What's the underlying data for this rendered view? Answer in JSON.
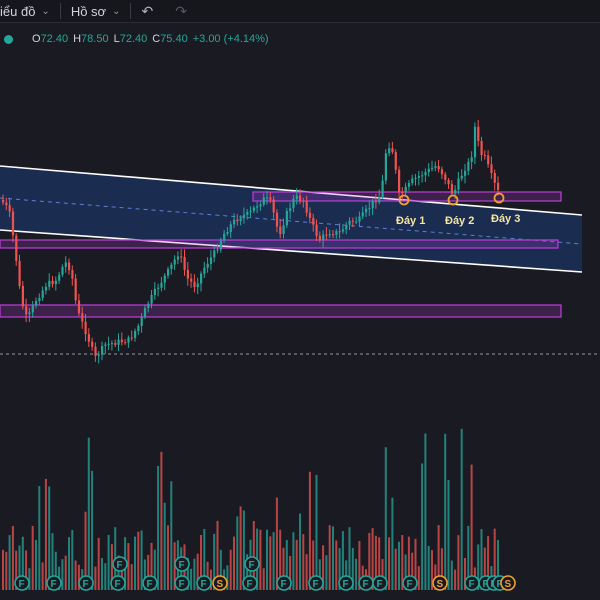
{
  "toolbar": {
    "chart_menu": "iểu đồ",
    "profile_menu": "Hồ sơ",
    "undo_icon": "undo-icon",
    "redo_icon": "redo-icon"
  },
  "legend": {
    "open_label": "O",
    "open": "72.40",
    "high_label": "H",
    "high": "78.50",
    "low_label": "L",
    "low": "72.40",
    "close_label": "C",
    "close": "75.40",
    "change": "+3.00 (+4.14%)",
    "status_color": "#26a69a"
  },
  "annotations": {
    "bottom1": "Đáy 1",
    "bottom2": "Đáy 2",
    "bottom3": "Đáy 3"
  },
  "colors": {
    "up": "#26a69a",
    "down": "#ef5350",
    "channel_fill": "#1e3a78",
    "zone": "#b53bd0",
    "marker": "#f0a030"
  },
  "event_markers": [
    "F",
    "F",
    "F",
    "F",
    "F",
    "F",
    "F",
    "S",
    "F",
    "F",
    "F",
    "F",
    "F",
    "F",
    "F",
    "S",
    "F",
    "F",
    "F",
    "F",
    "S"
  ],
  "event_markers_top": [
    "F",
    "F",
    "F"
  ],
  "chart_data": {
    "type": "candlestick",
    "series": [
      {
        "name": "",
        "values": []
      }
    ]
  }
}
